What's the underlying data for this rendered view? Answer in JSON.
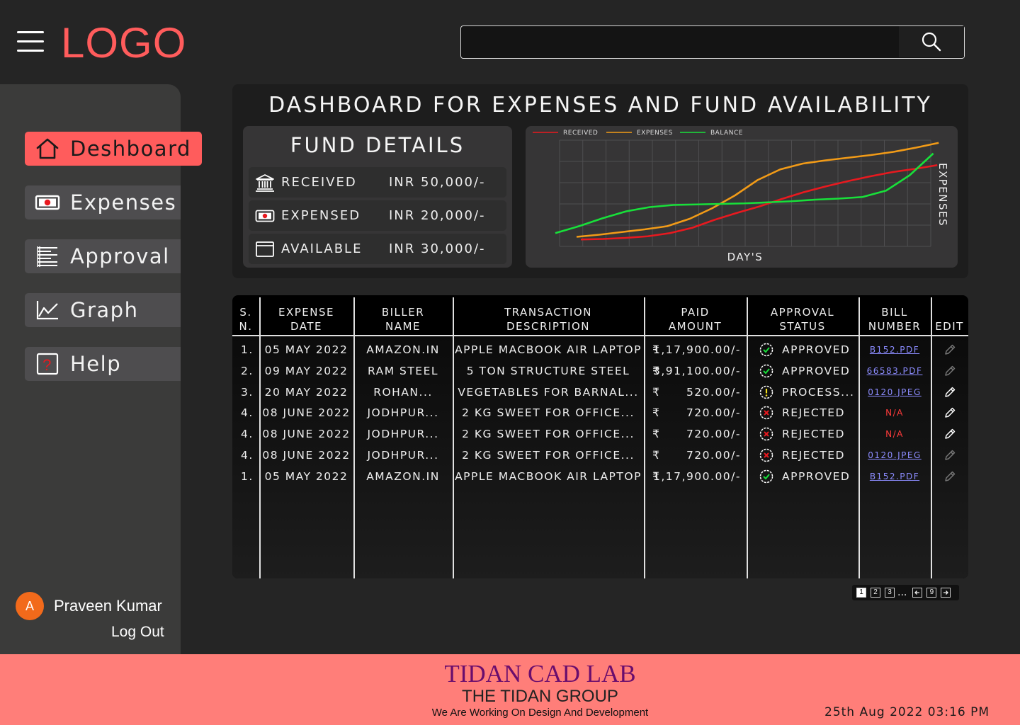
{
  "header": {
    "logo": "LOGO",
    "search_placeholder": "",
    "search_icon": "search-icon",
    "menu_icon": "hamburger-icon"
  },
  "sidebar": {
    "items": [
      {
        "label": "Deshboard",
        "icon": "home-icon",
        "active": true
      },
      {
        "label": "Expenses",
        "icon": "cash-icon",
        "active": false
      },
      {
        "label": "Approval",
        "icon": "list-icon",
        "active": false
      },
      {
        "label": "Graph",
        "icon": "chart-icon",
        "active": false
      },
      {
        "label": "Help",
        "icon": "question-icon",
        "active": false
      }
    ],
    "user": {
      "initial": "A",
      "name": "Praveen Kumar",
      "logout": "Log Out"
    }
  },
  "dashboard": {
    "title": "DASHBOARD FOR EXPENSES AND FUND AVAILABILITY",
    "fund": {
      "title": "FUND DETAILS",
      "rows": [
        {
          "icon": "bank-icon",
          "label": "RECEIVED",
          "value": "INR 50,000/-"
        },
        {
          "icon": "cash-icon",
          "label": "EXPENSED",
          "value": "INR 20,000/-"
        },
        {
          "icon": "wallet-icon",
          "label": "AVAILABLE",
          "value": "INR 30,000/-"
        }
      ]
    }
  },
  "chart_data": {
    "type": "line",
    "title": "",
    "xlabel": "DAY'S",
    "ylabel": "EXPENSES",
    "grid": true,
    "legend_placement": "top-left",
    "x": [
      0,
      1,
      2,
      3,
      4,
      5,
      6,
      7,
      8,
      9,
      10,
      11,
      12,
      13,
      14,
      15,
      16
    ],
    "series": [
      {
        "name": "RECEIVED",
        "color": "#e8191f",
        "values": [
          1.3,
          1.4,
          1.6,
          1.9,
          2.5,
          3.5,
          5.0,
          6.3,
          7.5,
          8.9,
          10.2,
          11.3,
          12.3,
          13.2,
          14.0,
          14.6,
          15.3
        ]
      },
      {
        "name": "EXPENSES",
        "color": "#f29b17",
        "values": [
          1.8,
          2.2,
          2.7,
          3.2,
          3.8,
          5.2,
          7.2,
          9.6,
          12.5,
          14.5,
          15.6,
          16.2,
          16.7,
          17.2,
          17.8,
          18.6,
          19.5
        ]
      },
      {
        "name": "BALANCE",
        "color": "#18e03a",
        "values": [
          2.5,
          3.8,
          5.3,
          6.6,
          7.4,
          7.8,
          7.9,
          8.0,
          8.1,
          8.3,
          8.5,
          8.8,
          9.0,
          9.3,
          10.5,
          13.4,
          17.5
        ]
      }
    ]
  },
  "table": {
    "headers": [
      "S.\nN.",
      "EXPENSE\nDATE",
      "BILLER\nNAME",
      "TRANSACTION\nDESCRIPTION",
      "PAID\nAMOUNT",
      "APPROVAL\nSTATUS",
      "BILL\nNUMBER",
      "EDIT"
    ],
    "rows": [
      {
        "sn": "1.",
        "date": "05 MAY 2022",
        "biller": "AMAZON.IN",
        "desc": "APPLE MACBOOK AIR LAPTOP",
        "cur": "₹",
        "amount": "1,17,900.00/-",
        "status": "APPROVED",
        "status_icon": "check-circle-icon",
        "bill": "B152.PDF",
        "bill_na": false,
        "edit_enabled": false
      },
      {
        "sn": "2.",
        "date": "09 MAY 2022",
        "biller": "RAM STEEL",
        "desc": "5 TON STRUCTURE STEEL",
        "cur": "₹",
        "amount": "3,91,100.00/-",
        "status": "APPROVED",
        "status_icon": "check-circle-icon",
        "bill": "66583.PDF",
        "bill_na": false,
        "edit_enabled": false
      },
      {
        "sn": "3.",
        "date": "20 MAY 2022",
        "biller": "ROHAN...",
        "desc": "VEGETABLES FOR BARNAL...",
        "cur": "₹",
        "amount": "520.00/-",
        "status": "PROCESS...",
        "status_icon": "warning-circle-icon",
        "bill": "0120.JPEG",
        "bill_na": false,
        "edit_enabled": true
      },
      {
        "sn": "4.",
        "date": "08 JUNE 2022",
        "biller": "JODHPUR...",
        "desc": "2 KG SWEET FOR OFFICE...",
        "cur": "₹",
        "amount": "720.00/-",
        "status": "REJECTED",
        "status_icon": "x-circle-icon",
        "bill": "N/A",
        "bill_na": true,
        "edit_enabled": true
      },
      {
        "sn": "4.",
        "date": "08 JUNE 2022",
        "biller": "JODHPUR...",
        "desc": "2 KG SWEET FOR OFFICE...",
        "cur": "₹",
        "amount": "720.00/-",
        "status": "REJECTED",
        "status_icon": "x-circle-icon",
        "bill": "N/A",
        "bill_na": true,
        "edit_enabled": true
      },
      {
        "sn": "4.",
        "date": "08 JUNE 2022",
        "biller": "JODHPUR...",
        "desc": "2 KG SWEET FOR OFFICE...",
        "cur": "₹",
        "amount": "720.00/-",
        "status": "REJECTED",
        "status_icon": "x-circle-icon",
        "bill": "0120.JPEG",
        "bill_na": false,
        "edit_enabled": false
      },
      {
        "sn": "1.",
        "date": "05 MAY 2022",
        "biller": "AMAZON.IN",
        "desc": "APPLE MACBOOK AIR LAPTOP",
        "cur": "₹",
        "amount": "1,17,900.00/-",
        "status": "APPROVED",
        "status_icon": "check-circle-icon",
        "bill": "B152.PDF",
        "bill_na": false,
        "edit_enabled": false
      }
    ]
  },
  "pagination": {
    "pages": [
      "1",
      "2",
      "3"
    ],
    "ellipsis": "...",
    "last": "9",
    "current": "1"
  },
  "footer": {
    "line1": "TIDAN CAD LAB",
    "line2": "THE TIDAN GROUP",
    "line3": "We Are Working On Design And Development",
    "datetime": "25th Aug 2022 03:16 PM"
  },
  "colors": {
    "accent": "#ff5c5c",
    "footer_bg": "#ff7e79",
    "brand_text": "#6a0d6d"
  }
}
